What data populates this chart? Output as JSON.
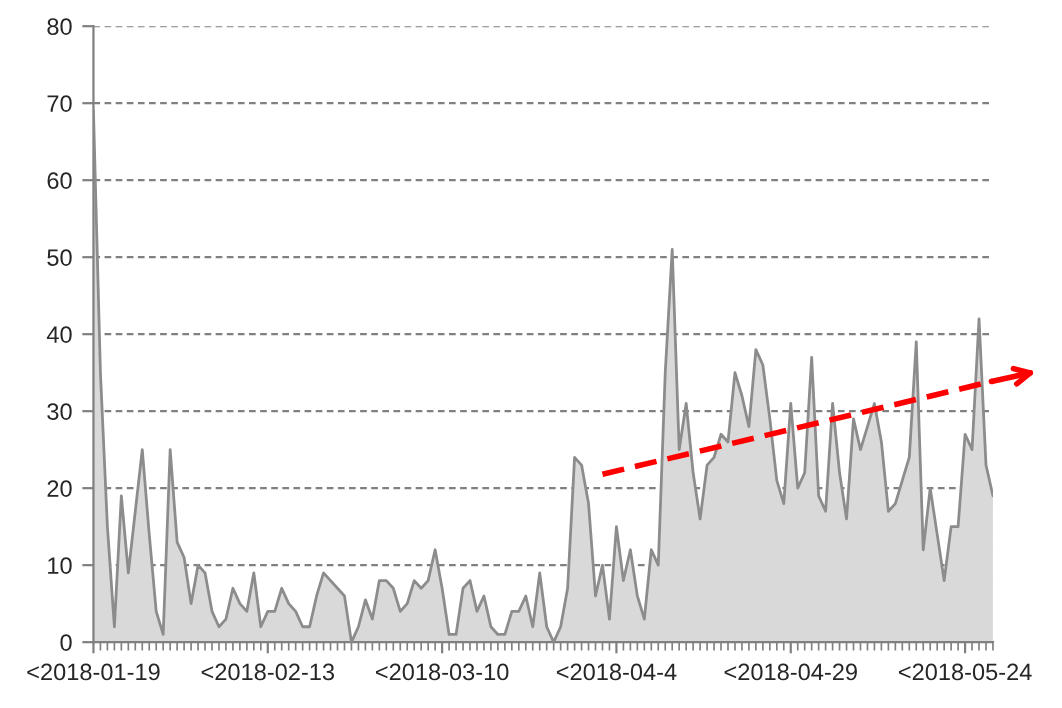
{
  "chart_data": {
    "type": "area",
    "x": [
      "2018-01-19",
      "2018-01-20",
      "2018-01-21",
      "2018-01-22",
      "2018-01-23",
      "2018-01-24",
      "2018-01-25",
      "2018-01-26",
      "2018-01-27",
      "2018-01-28",
      "2018-01-29",
      "2018-01-30",
      "2018-01-31",
      "2018-02-01",
      "2018-02-02",
      "2018-02-03",
      "2018-02-04",
      "2018-02-05",
      "2018-02-06",
      "2018-02-07",
      "2018-02-08",
      "2018-02-09",
      "2018-02-10",
      "2018-02-11",
      "2018-02-12",
      "2018-02-13",
      "2018-02-14",
      "2018-02-15",
      "2018-02-16",
      "2018-02-17",
      "2018-02-18",
      "2018-02-19",
      "2018-02-20",
      "2018-02-21",
      "2018-02-22",
      "2018-02-23",
      "2018-02-24",
      "2018-02-25",
      "2018-02-26",
      "2018-02-27",
      "2018-02-28",
      "2018-03-01",
      "2018-03-02",
      "2018-03-03",
      "2018-03-04",
      "2018-03-05",
      "2018-03-06",
      "2018-03-07",
      "2018-03-08",
      "2018-03-09",
      "2018-03-10",
      "2018-03-11",
      "2018-03-12",
      "2018-03-13",
      "2018-03-14",
      "2018-03-15",
      "2018-03-16",
      "2018-03-17",
      "2018-03-18",
      "2018-03-19",
      "2018-03-20",
      "2018-03-21",
      "2018-03-22",
      "2018-03-23",
      "2018-03-24",
      "2018-03-25",
      "2018-03-26",
      "2018-03-27",
      "2018-03-28",
      "2018-03-29",
      "2018-03-30",
      "2018-03-31",
      "2018-04-01",
      "2018-04-02",
      "2018-04-03",
      "2018-04-04",
      "2018-04-05",
      "2018-04-06",
      "2018-04-07",
      "2018-04-08",
      "2018-04-09",
      "2018-04-10",
      "2018-04-11",
      "2018-04-12",
      "2018-04-13",
      "2018-04-14",
      "2018-04-15",
      "2018-04-16",
      "2018-04-17",
      "2018-04-18",
      "2018-04-19",
      "2018-04-20",
      "2018-04-21",
      "2018-04-22",
      "2018-04-23",
      "2018-04-24",
      "2018-04-25",
      "2018-04-26",
      "2018-04-27",
      "2018-04-28",
      "2018-04-29",
      "2018-04-30",
      "2018-05-01",
      "2018-05-02",
      "2018-05-03",
      "2018-05-04",
      "2018-05-05",
      "2018-05-06",
      "2018-05-07",
      "2018-05-08",
      "2018-05-09",
      "2018-05-10",
      "2018-05-11",
      "2018-05-12",
      "2018-05-13",
      "2018-05-14",
      "2018-05-15",
      "2018-05-16",
      "2018-05-17",
      "2018-05-18",
      "2018-05-19",
      "2018-05-20",
      "2018-05-21",
      "2018-05-22",
      "2018-05-23",
      "2018-05-24",
      "2018-05-25",
      "2018-05-26",
      "2018-05-27",
      "2018-05-28"
    ],
    "xlim": [
      "2018-01-19",
      "2018-05-28"
    ],
    "xticks": [
      {
        "value": "2018-01-19",
        "label": "<2018-01-19"
      },
      {
        "value": "2018-02-13",
        "label": "<2018-02-13"
      },
      {
        "value": "2018-03-10",
        "label": "<2018-03-10"
      },
      {
        "value": "2018-04-04",
        "label": "<2018-04-4"
      },
      {
        "value": "2018-04-29",
        "label": "<2018-04-29"
      },
      {
        "value": "2018-05-24",
        "label": "<2018-05-24"
      }
    ],
    "ylim": [
      0,
      80
    ],
    "yticks": [
      0,
      10,
      20,
      30,
      40,
      50,
      60,
      70,
      80
    ],
    "grid": "y",
    "series": [
      {
        "color": "#d9d9d9",
        "values": [
          69,
          35,
          15,
          2,
          19,
          9,
          17,
          25,
          14,
          4,
          1,
          25,
          13,
          11,
          5,
          10,
          9,
          4,
          2,
          3,
          7,
          5,
          4,
          9,
          2,
          4,
          4,
          7,
          5,
          4,
          2,
          2,
          6,
          9,
          8,
          7,
          6,
          0,
          2,
          5.5,
          3,
          8,
          8,
          7,
          4,
          5,
          8,
          7,
          8,
          12,
          7,
          1,
          1,
          7,
          8,
          4,
          6,
          2,
          1,
          1,
          4,
          4,
          6,
          2,
          9,
          2,
          0,
          2,
          7,
          24,
          23,
          18,
          6,
          10,
          3,
          15,
          8,
          12,
          6,
          3,
          12,
          10,
          35,
          51,
          25,
          31,
          22,
          16,
          23,
          24,
          27,
          26,
          35,
          32,
          28,
          38,
          36,
          29,
          21,
          18,
          31,
          20,
          22,
          37,
          19,
          17,
          31,
          22,
          16,
          29,
          25,
          28,
          31,
          26,
          17,
          18,
          21,
          24,
          39,
          12,
          20,
          14,
          8,
          15,
          15,
          27,
          25,
          42,
          23,
          19
        ]
      },
      {
        "type": "line",
        "color": "#ff0000",
        "line_style": "dashed",
        "x": [
          "2018-04-02",
          "2018-05-28"
        ],
        "values": [
          21.8,
          33.9
        ]
      }
    ]
  }
}
